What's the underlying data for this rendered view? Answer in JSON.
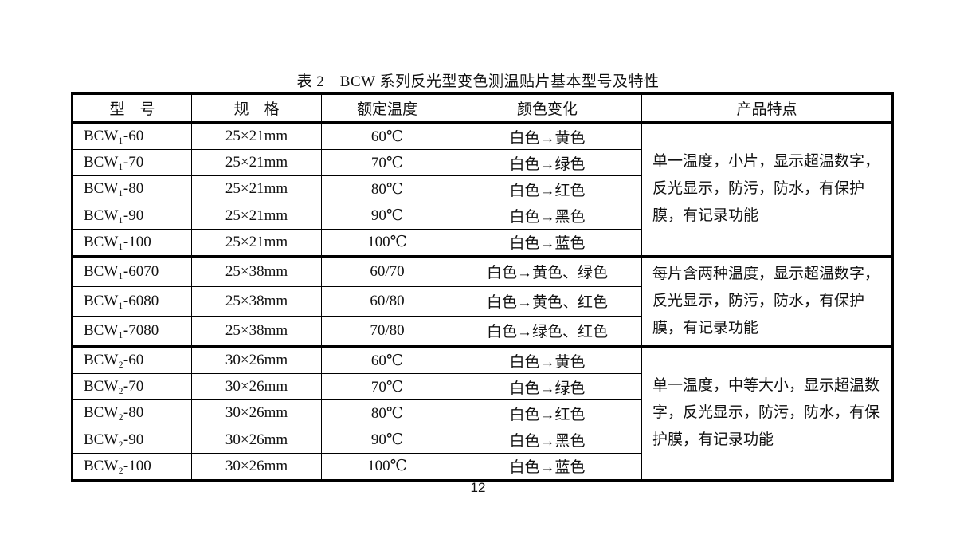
{
  "page": {
    "background_color": "#ffffff",
    "text_color": "#111111",
    "border_color": "#000000",
    "number": "12"
  },
  "table": {
    "title": "表 2　BCW 系列反光型变色测温贴片基本型号及特性",
    "headers": [
      "型　号",
      "规　格",
      "额定温度",
      "颜色变化",
      "产品特点"
    ],
    "column_semantics": [
      "model",
      "spec",
      "rated-temperature",
      "color-change",
      "product-features"
    ],
    "groups": [
      {
        "feature": "单一温度，小片，显示超温数字，反光显示，防污，防水，有保护膜，有记录功能",
        "rows": [
          [
            "BCW₁-60",
            "25×21mm",
            "60℃",
            "白色→黄色"
          ],
          [
            "BCW₁-70",
            "25×21mm",
            "70℃",
            "白色→绿色"
          ],
          [
            "BCW₁-80",
            "25×21mm",
            "80℃",
            "白色→红色"
          ],
          [
            "BCW₁-90",
            "25×21mm",
            "90℃",
            "白色→黑色"
          ],
          [
            "BCW₁-100",
            "25×21mm",
            "100℃",
            "白色→蓝色"
          ]
        ]
      },
      {
        "feature": "每片含两种温度，显示超温数字，反光显示，防污，防水，有保护膜，有记录功能",
        "rows": [
          [
            "BCW₁-6070",
            "25×38mm",
            "60/70",
            "白色→黄色、绿色"
          ],
          [
            "BCW₁-6080",
            "25×38mm",
            "60/80",
            "白色→黄色、红色"
          ],
          [
            "BCW₁-7080",
            "25×38mm",
            "70/80",
            "白色→绿色、红色"
          ]
        ]
      },
      {
        "feature": "单一温度，中等大小，显示超温数字，反光显示，防污，防水，有保护膜，有记录功能",
        "rows": [
          [
            "BCW₂-60",
            "30×26mm",
            "60℃",
            "白色→黄色"
          ],
          [
            "BCW₂-70",
            "30×26mm",
            "70℃",
            "白色→绿色"
          ],
          [
            "BCW₂-80",
            "30×26mm",
            "80℃",
            "白色→红色"
          ],
          [
            "BCW₂-90",
            "30×26mm",
            "90℃",
            "白色→黑色"
          ],
          [
            "BCW₂-100",
            "30×26mm",
            "100℃",
            "白色→蓝色"
          ]
        ]
      }
    ]
  }
}
